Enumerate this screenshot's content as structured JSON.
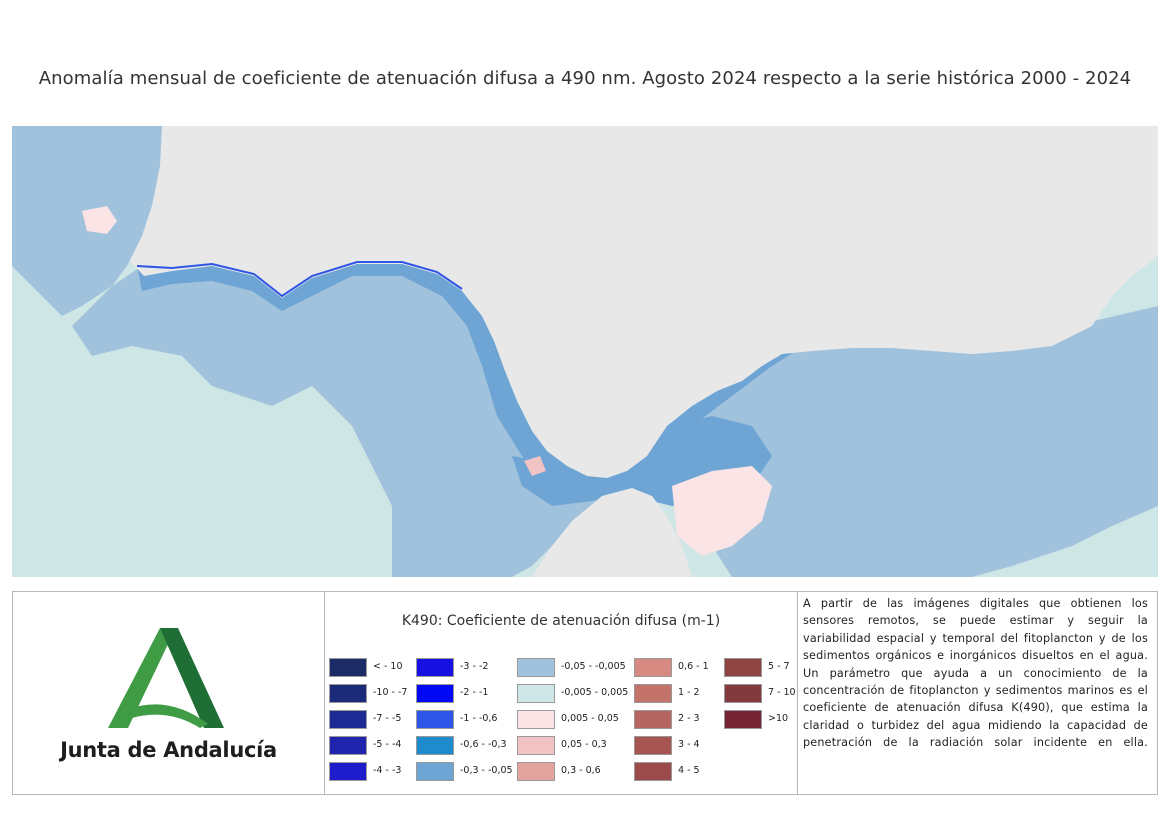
{
  "title": "Anomalía mensual de coeficiente de atenuación difusa a 490 nm. Agosto 2024 respecto a la serie histórica 2000 - 2024",
  "logo": {
    "text": "Junta de Andalucía",
    "colors": {
      "green_light": "#3f9c45",
      "green_dark": "#1f6e35"
    }
  },
  "legend": {
    "title": "K490: Coeficiente de atenuación difusa (m-1)",
    "columns": [
      [
        {
          "label": "< - 10",
          "color": "#1c2a66"
        },
        {
          "label": "-10 - -7",
          "color": "#1c2a7a"
        },
        {
          "label": "-7 - -5",
          "color": "#1f2b95"
        },
        {
          "label": "-5 - -4",
          "color": "#2125ad"
        },
        {
          "label": "-4 - -3",
          "color": "#1f1ccc"
        }
      ],
      [
        {
          "label": "-3 - -2",
          "color": "#1710e3"
        },
        {
          "label": "-2 - -1",
          "color": "#0008f5"
        },
        {
          "label": "-1 - -0,6",
          "color": "#2e55e6"
        },
        {
          "label": "-0,6 - -0,3",
          "color": "#1d8bcc"
        },
        {
          "label": "-0,3 - -0,05",
          "color": "#6fa5d4"
        }
      ],
      [
        {
          "label": "-0,05 - -0,005",
          "color": "#a1c2dd"
        },
        {
          "label": "-0,005 - 0,005",
          "color": "#cfe6e6"
        },
        {
          "label": "0,005 - 0,05",
          "color": "#fbe4e6"
        },
        {
          "label": "0,05 - 0,3",
          "color": "#f2c3c4"
        },
        {
          "label": "0,3 - 0,6",
          "color": "#e3a49f"
        }
      ],
      [
        {
          "label": "0,6 - 1",
          "color": "#d68a82"
        },
        {
          "label": "1 - 2",
          "color": "#c4736a"
        },
        {
          "label": "2 - 3",
          "color": "#b66660"
        },
        {
          "label": "3 - 4",
          "color": "#a85552"
        },
        {
          "label": "4 - 5",
          "color": "#9b4b4b"
        }
      ],
      [
        {
          "label": "5 - 7",
          "color": "#8f4444"
        },
        {
          "label": "7 - 10",
          "color": "#833a3e"
        },
        {
          "label": ">10",
          "color": "#742432"
        }
      ]
    ]
  },
  "description": "A partir de las imágenes digitales que obtienen los sensores remotos, se puede estimar y seguir la variabilidad espacial y temporal del fitoplancton y de los sedimentos orgánicos e inorgánicos disueltos en el agua. Un parámetro que ayuda a un conocimiento de la concentración de fitoplancton y sedimentos marinos es el coeficiente de atenuación difusa K(490), que estima la claridad o turbidez del agua midiendo la capacidad de penetración de la radiación solar incidente en ella.",
  "map_colors": {
    "land": "#e8e8e8",
    "sea_neutral": "#cfe6e6",
    "sea_slight_negative": "#a1c2dd",
    "sea_negative": "#6fa5d4",
    "sea_strong_negative": "#2e55e6",
    "sea_slight_positive": "#fbe4e6",
    "sea_positive": "#f2c3c4"
  }
}
